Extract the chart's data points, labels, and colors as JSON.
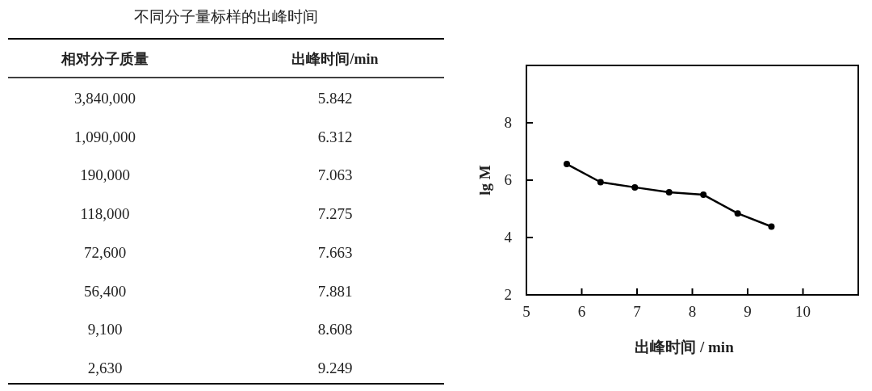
{
  "chart_data": [
    {
      "type": "other",
      "title": "不同分子量标样的出峰时间",
      "annotations": [
        "相对分子质量",
        "出峰时间/min",
        "3,840,000",
        "5.842",
        "1,090,000",
        "6.312",
        "190,000",
        "7.063",
        "118,000",
        "7.275",
        "72,600",
        "7.663",
        "56,400",
        "7.881",
        "9,100",
        "8.608",
        "2,630",
        "9.249"
      ]
    },
    {
      "type": "line",
      "xlabel": "出峰时间 / min",
      "ylabel": "lg M",
      "x": [
        5.73,
        6.34,
        6.96,
        7.58,
        8.2,
        8.82,
        9.43
      ],
      "values": [
        6.56,
        5.93,
        5.75,
        5.58,
        5.49,
        4.84,
        4.38
      ],
      "color": "#000000",
      "marker": "circle",
      "xlim": [
        5,
        11
      ],
      "ylim": [
        2,
        10
      ],
      "xticks": [
        5,
        6,
        7,
        8,
        9,
        10
      ],
      "yticks": [
        2,
        4,
        6,
        8
      ]
    }
  ]
}
